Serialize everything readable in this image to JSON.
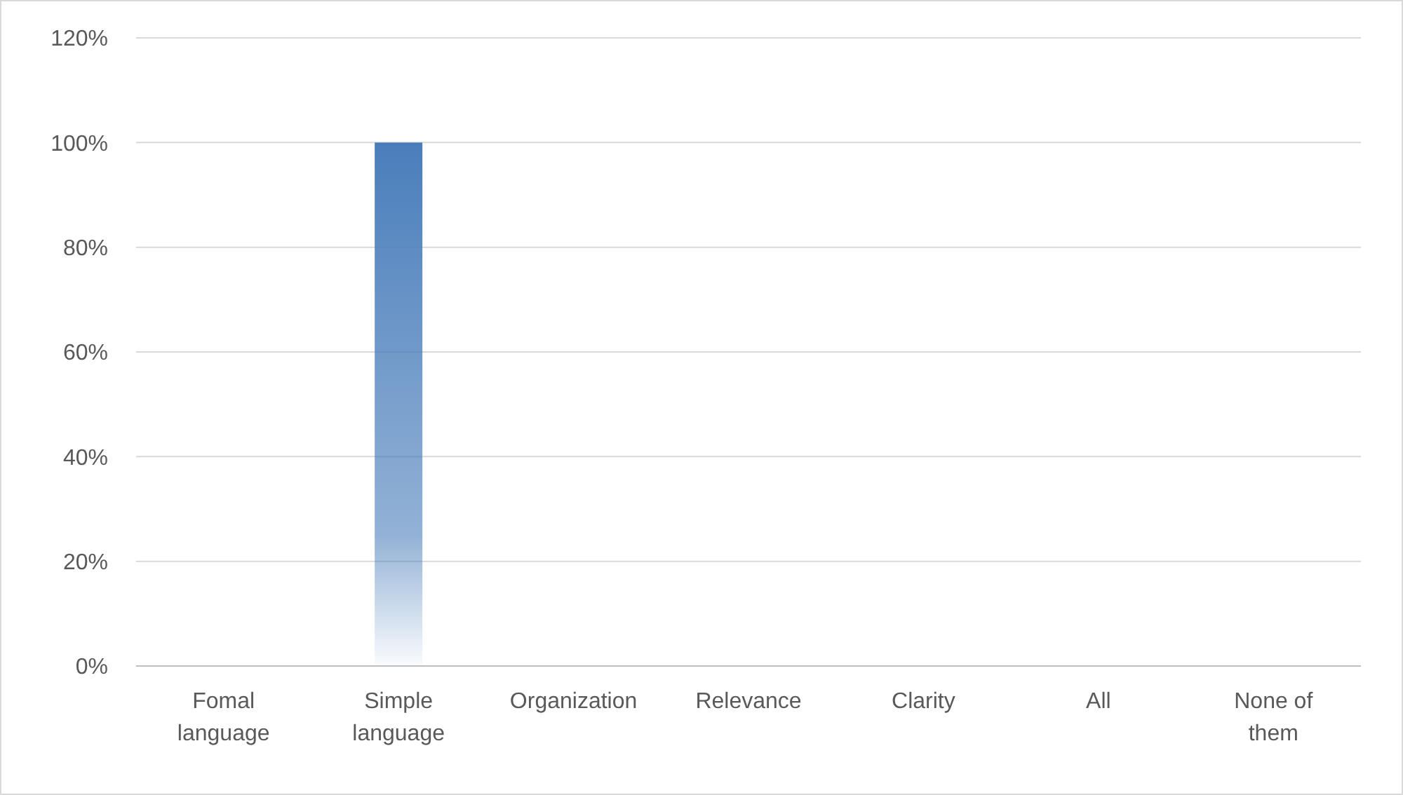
{
  "chart_data": {
    "type": "bar",
    "categories": [
      "Fomal language",
      "Simple language",
      "Organization",
      "Relevance",
      "Clarity",
      "All",
      "None of them"
    ],
    "values": [
      0,
      100,
      0,
      0,
      0,
      0,
      0
    ],
    "color": "#4a7ebb",
    "ylim": [
      0,
      120
    ],
    "yticks": [
      {
        "value": 0,
        "label": "0%"
      },
      {
        "value": 20,
        "label": "20%"
      },
      {
        "value": 40,
        "label": "40%"
      },
      {
        "value": 60,
        "label": "60%"
      },
      {
        "value": 80,
        "label": "80%"
      },
      {
        "value": 100,
        "label": "100%"
      },
      {
        "value": 120,
        "label": "120%"
      }
    ],
    "grid": "y"
  }
}
